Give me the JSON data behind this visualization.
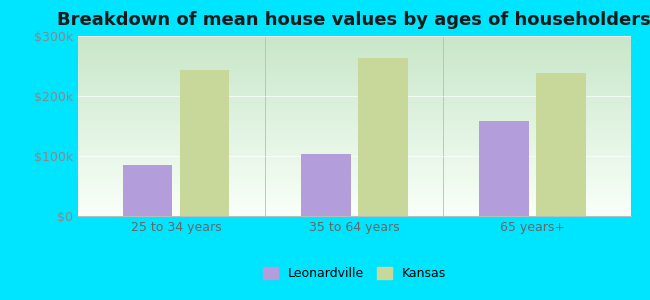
{
  "title": "Breakdown of mean house values by ages of householders",
  "categories": [
    "25 to 34 years",
    "35 to 64 years",
    "65 years+"
  ],
  "leonardville_values": [
    85000,
    103000,
    158000
  ],
  "kansas_values": [
    243000,
    263000,
    238000
  ],
  "leonardville_color": "#b39ddb",
  "kansas_color": "#c8d89a",
  "background_outer": "#00e5ff",
  "ylim": [
    0,
    300000
  ],
  "yticks": [
    0,
    100000,
    200000,
    300000
  ],
  "ytick_labels": [
    "$0",
    "$100k",
    "$200k",
    "$300k"
  ],
  "legend_labels": [
    "Leonardville",
    "Kansas"
  ],
  "title_fontsize": 13,
  "bar_width": 0.28,
  "grad_top": "#c8e6c9",
  "grad_bottom": "#f9fff9"
}
